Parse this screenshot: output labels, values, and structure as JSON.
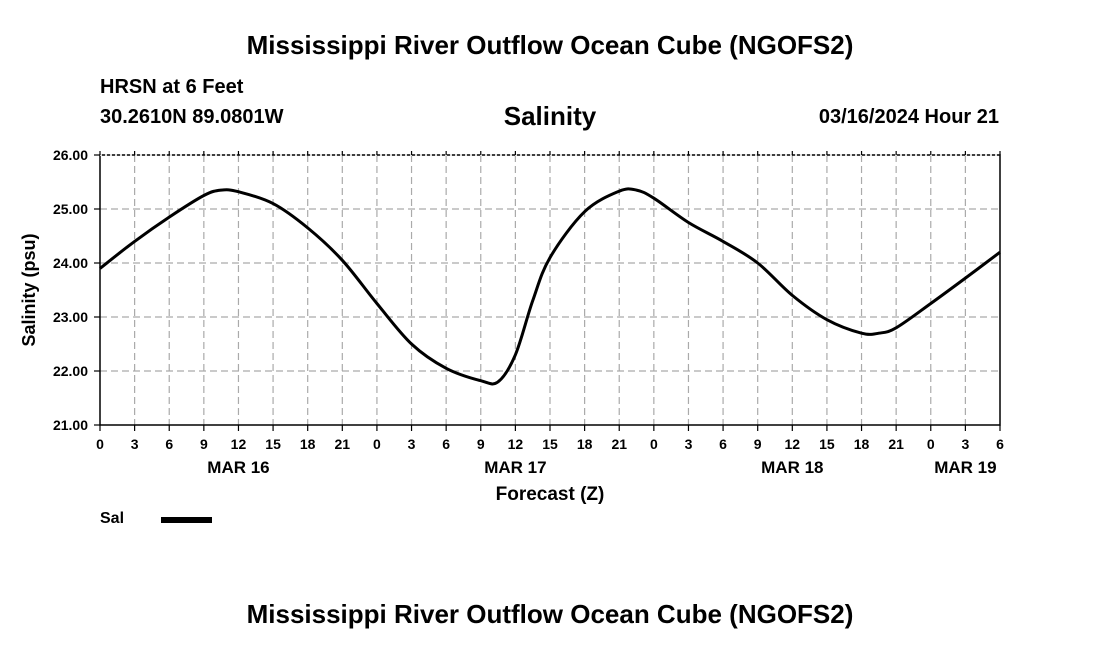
{
  "header": {
    "title": "Mississippi River Outflow Ocean Cube (NGOFS2)",
    "station": "HRSN at 6 Feet",
    "coords": "30.2610N  89.0801W",
    "datetime": "03/16/2024 Hour 21"
  },
  "footer": {
    "title": "Mississippi River Outflow Ocean Cube (NGOFS2)"
  },
  "legend": {
    "label": "Sal",
    "color": "#000000"
  },
  "chart_data": {
    "type": "line",
    "title": "Salinity",
    "xlabel": "Forecast (Z)",
    "ylabel": "Salinity (psu)",
    "ylim": [
      21.0,
      26.0
    ],
    "yticks": [
      21.0,
      22.0,
      23.0,
      24.0,
      25.0,
      26.0
    ],
    "ytick_labels": [
      "21.00",
      "22.00",
      "23.00",
      "24.00",
      "25.00",
      "26.00"
    ],
    "xlim": [
      0,
      78
    ],
    "xticks": [
      0,
      3,
      6,
      9,
      12,
      15,
      18,
      21,
      24,
      27,
      30,
      33,
      36,
      39,
      42,
      45,
      48,
      51,
      54,
      57,
      60,
      63,
      66,
      69,
      72,
      75,
      78
    ],
    "xtick_labels": [
      "0",
      "3",
      "6",
      "9",
      "12",
      "15",
      "18",
      "21",
      "0",
      "3",
      "6",
      "9",
      "12",
      "15",
      "18",
      "21",
      "0",
      "3",
      "6",
      "9",
      "12",
      "15",
      "18",
      "21",
      "0",
      "3",
      "6"
    ],
    "date_labels": [
      {
        "x": 12,
        "label": "MAR 16"
      },
      {
        "x": 36,
        "label": "MAR 17"
      },
      {
        "x": 60,
        "label": "MAR 18"
      },
      {
        "x": 75,
        "label": "MAR 19"
      }
    ],
    "grid": true,
    "series": [
      {
        "name": "Sal",
        "x": [
          0,
          3,
          6,
          9,
          10.5,
          12,
          15,
          18,
          21,
          24,
          27,
          30,
          33,
          34.5,
          36,
          37.5,
          39,
          42,
          45,
          46.5,
          48,
          51,
          54,
          57,
          60,
          63,
          66,
          67.5,
          69,
          72,
          75,
          78
        ],
        "values": [
          23.9,
          24.4,
          24.85,
          25.25,
          25.35,
          25.32,
          25.1,
          24.65,
          24.05,
          23.25,
          22.5,
          22.05,
          21.82,
          21.8,
          22.3,
          23.3,
          24.1,
          24.95,
          25.33,
          25.35,
          25.2,
          24.75,
          24.4,
          24.0,
          23.4,
          22.95,
          22.7,
          22.7,
          22.8,
          23.25,
          23.72,
          24.2
        ]
      }
    ]
  }
}
